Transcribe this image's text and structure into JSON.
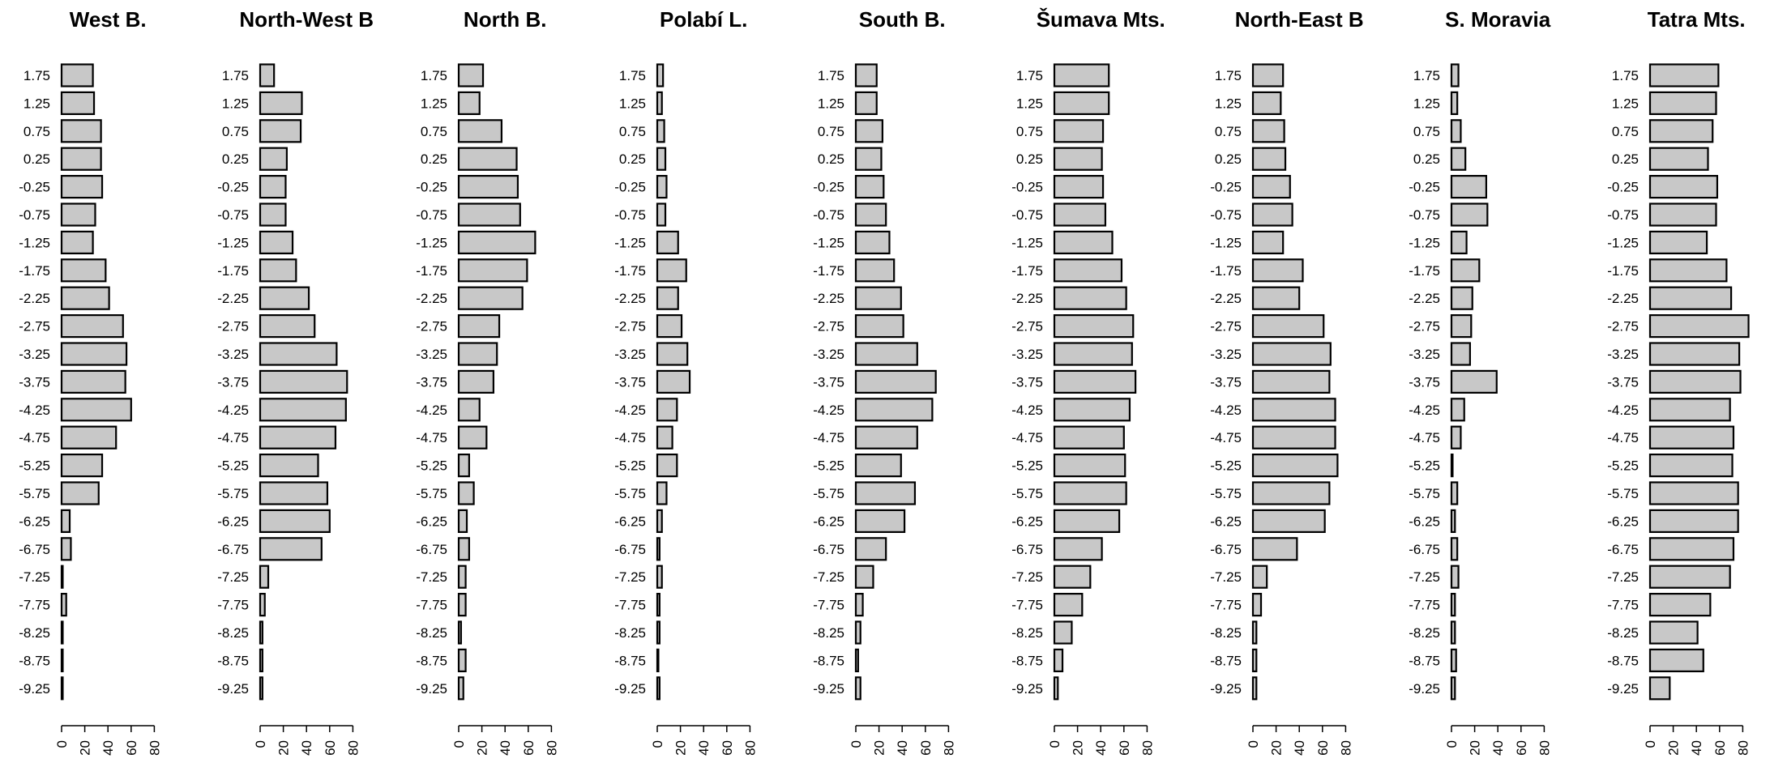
{
  "chart_data": {
    "type": "bar",
    "orientation": "horizontal",
    "categories": [
      "1.75",
      "1.25",
      "0.75",
      "0.25",
      "-0.25",
      "-0.75",
      "-1.25",
      "-1.75",
      "-2.25",
      "-2.75",
      "-3.25",
      "-3.75",
      "-4.25",
      "-4.75",
      "-5.25",
      "-5.75",
      "-6.25",
      "-6.75",
      "-7.25",
      "-7.75",
      "-8.25",
      "-8.75",
      "-9.25"
    ],
    "x_ticks": [
      0,
      20,
      40,
      60,
      80
    ],
    "xlim": [
      0,
      80
    ],
    "bar_color": "#c8c8c8",
    "border_color": "#000000",
    "panels": [
      {
        "title": "West B.",
        "values": [
          27,
          28,
          34,
          34,
          35,
          29,
          27,
          38,
          41,
          53,
          56,
          55,
          60,
          47,
          35,
          32,
          7,
          8,
          1,
          4,
          1,
          1,
          1
        ]
      },
      {
        "title": "North-West B",
        "values": [
          12,
          36,
          35,
          23,
          22,
          22,
          28,
          31,
          42,
          47,
          66,
          75,
          74,
          65,
          50,
          58,
          60,
          53,
          7,
          4,
          2,
          2,
          2
        ]
      },
      {
        "title": "North B.",
        "values": [
          21,
          18,
          37,
          50,
          51,
          53,
          66,
          59,
          55,
          35,
          33,
          30,
          18,
          24,
          9,
          13,
          7,
          9,
          6,
          6,
          2,
          6,
          4
        ]
      },
      {
        "title": "Polabí L.",
        "values": [
          5,
          4,
          6,
          7,
          8,
          7,
          18,
          25,
          18,
          21,
          26,
          28,
          17,
          13,
          17,
          8,
          4,
          2,
          4,
          2,
          2,
          1,
          2
        ]
      },
      {
        "title": "South B.",
        "values": [
          18,
          18,
          23,
          22,
          24,
          26,
          29,
          33,
          39,
          41,
          53,
          69,
          66,
          53,
          39,
          51,
          42,
          26,
          15,
          6,
          4,
          2,
          4
        ]
      },
      {
        "title": "Šumava Mts.",
        "values": [
          47,
          47,
          42,
          41,
          42,
          44,
          50,
          58,
          62,
          68,
          67,
          70,
          65,
          60,
          61,
          62,
          56,
          41,
          31,
          24,
          15,
          7,
          3
        ]
      },
      {
        "title": "North-East B",
        "values": [
          26,
          24,
          27,
          28,
          32,
          34,
          26,
          43,
          40,
          61,
          67,
          66,
          71,
          71,
          73,
          66,
          62,
          38,
          12,
          7,
          3,
          3,
          3
        ]
      },
      {
        "title": "S. Moravia",
        "values": [
          6,
          5,
          8,
          12,
          30,
          31,
          13,
          24,
          18,
          17,
          16,
          39,
          11,
          8,
          1,
          5,
          3,
          5,
          6,
          3,
          3,
          4,
          3
        ]
      },
      {
        "title": "Tatra Mts.",
        "values": [
          59,
          57,
          54,
          50,
          58,
          57,
          49,
          66,
          70,
          85,
          77,
          78,
          69,
          72,
          71,
          76,
          76,
          72,
          69,
          52,
          41,
          46,
          17
        ]
      }
    ]
  }
}
